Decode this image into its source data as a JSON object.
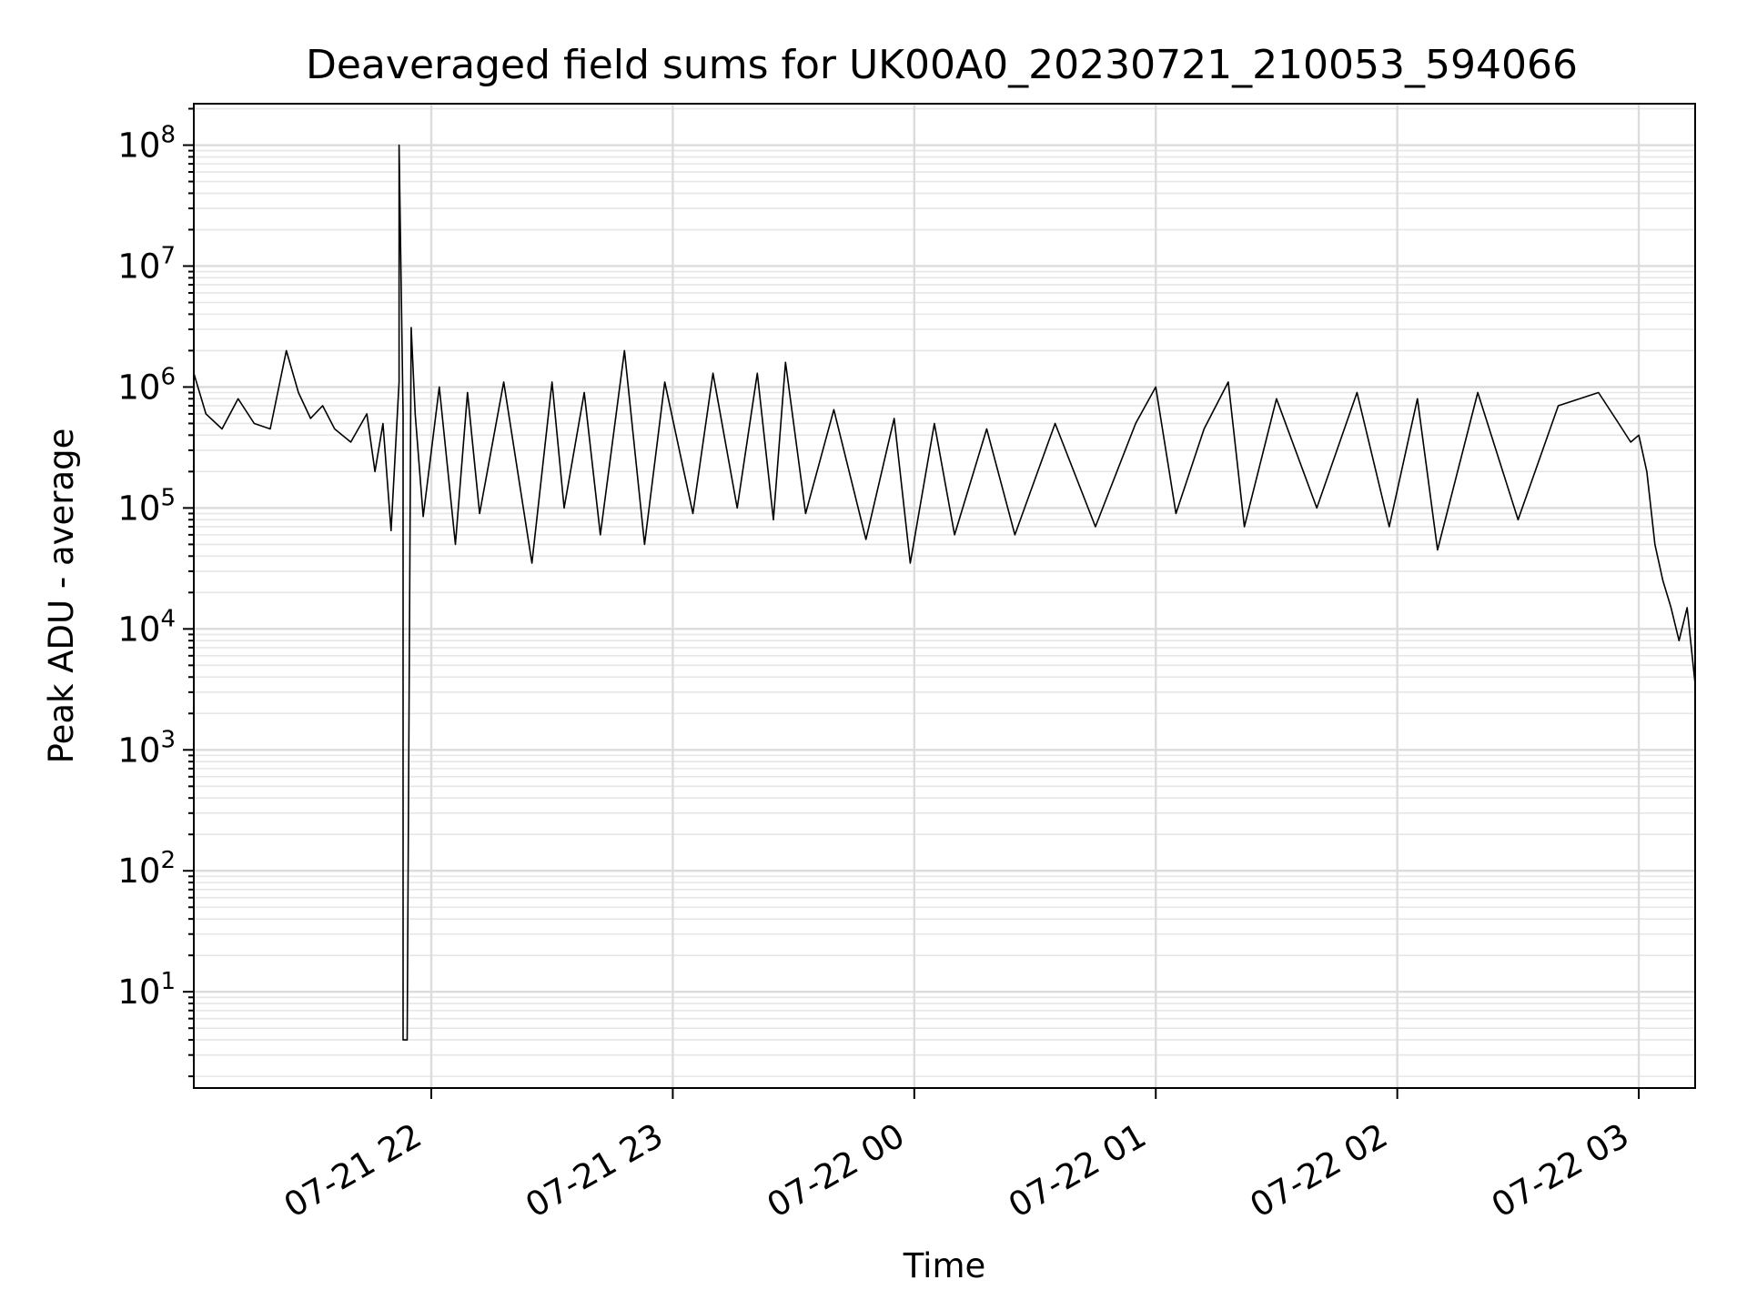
{
  "chart_data": {
    "type": "line",
    "title": "Deaveraged field sums for UK00A0_20230721_210053_594066",
    "xlabel": "Time",
    "ylabel": "Peak ADU - average",
    "y_scale": "log",
    "ylim": [
      1.6,
      220000000
    ],
    "xlim": [
      "2023-07-21 21:01",
      "2023-07-22 03:14"
    ],
    "grid": true,
    "x_ticks": [
      {
        "time": "2023-07-21 22:00",
        "label": "07-21 22"
      },
      {
        "time": "2023-07-21 23:00",
        "label": "07-21 23"
      },
      {
        "time": "2023-07-22 00:00",
        "label": "07-22 00"
      },
      {
        "time": "2023-07-22 01:00",
        "label": "07-22 01"
      },
      {
        "time": "2023-07-22 02:00",
        "label": "07-22 02"
      },
      {
        "time": "2023-07-22 03:00",
        "label": "07-22 03"
      }
    ],
    "y_ticks": [
      {
        "value": 10,
        "base": "10",
        "exp": "1"
      },
      {
        "value": 100,
        "base": "10",
        "exp": "2"
      },
      {
        "value": 1000,
        "base": "10",
        "exp": "3"
      },
      {
        "value": 10000,
        "base": "10",
        "exp": "4"
      },
      {
        "value": 100000,
        "base": "10",
        "exp": "5"
      },
      {
        "value": 1000000,
        "base": "10",
        "exp": "6"
      },
      {
        "value": 10000000,
        "base": "10",
        "exp": "7"
      },
      {
        "value": 100000000,
        "base": "10",
        "exp": "8"
      }
    ],
    "series_color": "#000000",
    "series": [
      {
        "x": [
          "2023-07-21 21:01",
          "2023-07-21 21:04",
          "2023-07-21 21:08",
          "2023-07-21 21:12",
          "2023-07-21 21:16",
          "2023-07-21 21:20",
          "2023-07-21 21:24",
          "2023-07-21 21:27",
          "2023-07-21 21:30",
          "2023-07-21 21:33",
          "2023-07-21 21:36",
          "2023-07-21 21:40",
          "2023-07-21 21:44",
          "2023-07-21 21:46",
          "2023-07-21 21:48",
          "2023-07-21 21:50",
          "2023-07-21 21:52",
          "2023-07-21 21:52",
          "2023-07-21 21:53",
          "2023-07-21 21:53",
          "2023-07-21 21:54",
          "2023-07-21 21:54",
          "2023-07-21 21:55",
          "2023-07-21 21:56",
          "2023-07-21 21:58",
          "2023-07-21 22:02",
          "2023-07-21 22:06",
          "2023-07-21 22:09",
          "2023-07-21 22:12",
          "2023-07-21 22:18",
          "2023-07-21 22:25",
          "2023-07-21 22:30",
          "2023-07-21 22:33",
          "2023-07-21 22:38",
          "2023-07-21 22:42",
          "2023-07-21 22:48",
          "2023-07-21 22:53",
          "2023-07-21 22:58",
          "2023-07-21 23:05",
          "2023-07-21 23:10",
          "2023-07-21 23:16",
          "2023-07-21 23:21",
          "2023-07-21 23:25",
          "2023-07-21 23:28",
          "2023-07-21 23:33",
          "2023-07-21 23:40",
          "2023-07-21 23:48",
          "2023-07-21 23:55",
          "2023-07-21 23:59",
          "2023-07-22 00:05",
          "2023-07-22 00:10",
          "2023-07-22 00:18",
          "2023-07-22 00:25",
          "2023-07-22 00:35",
          "2023-07-22 00:45",
          "2023-07-22 00:55",
          "2023-07-22 01:00",
          "2023-07-22 01:05",
          "2023-07-22 01:12",
          "2023-07-22 01:18",
          "2023-07-22 01:22",
          "2023-07-22 01:30",
          "2023-07-22 01:40",
          "2023-07-22 01:50",
          "2023-07-22 01:58",
          "2023-07-22 02:05",
          "2023-07-22 02:10",
          "2023-07-22 02:20",
          "2023-07-22 02:30",
          "2023-07-22 02:40",
          "2023-07-22 02:50",
          "2023-07-22 02:55",
          "2023-07-22 02:58",
          "2023-07-22 03:00",
          "2023-07-22 03:02",
          "2023-07-22 03:04",
          "2023-07-22 03:06",
          "2023-07-22 03:08",
          "2023-07-22 03:10",
          "2023-07-22 03:12",
          "2023-07-22 03:14"
        ],
        "y": [
          1300000,
          600000,
          450000,
          800000,
          500000,
          450000,
          2000000,
          900000,
          550000,
          700000,
          450000,
          350000,
          600000,
          200000,
          500000,
          65000,
          1100000,
          100000000,
          600000,
          4,
          4,
          4,
          3100000,
          600000,
          85000,
          1000000,
          50000,
          900000,
          90000,
          1100000,
          35000,
          1100000,
          100000,
          900000,
          60000,
          2000000,
          50000,
          1100000,
          90000,
          1300000,
          100000,
          1300000,
          80000,
          1600000,
          90000,
          650000,
          55000,
          550000,
          35000,
          500000,
          60000,
          450000,
          60000,
          500000,
          70000,
          500000,
          1000000,
          90000,
          450000,
          1100000,
          70000,
          800000,
          100000,
          900000,
          70000,
          800000,
          45000,
          900000,
          80000,
          700000,
          900000,
          500000,
          350000,
          400000,
          200000,
          50000,
          25000,
          15000,
          8000,
          15000,
          3500
        ]
      }
    ]
  }
}
